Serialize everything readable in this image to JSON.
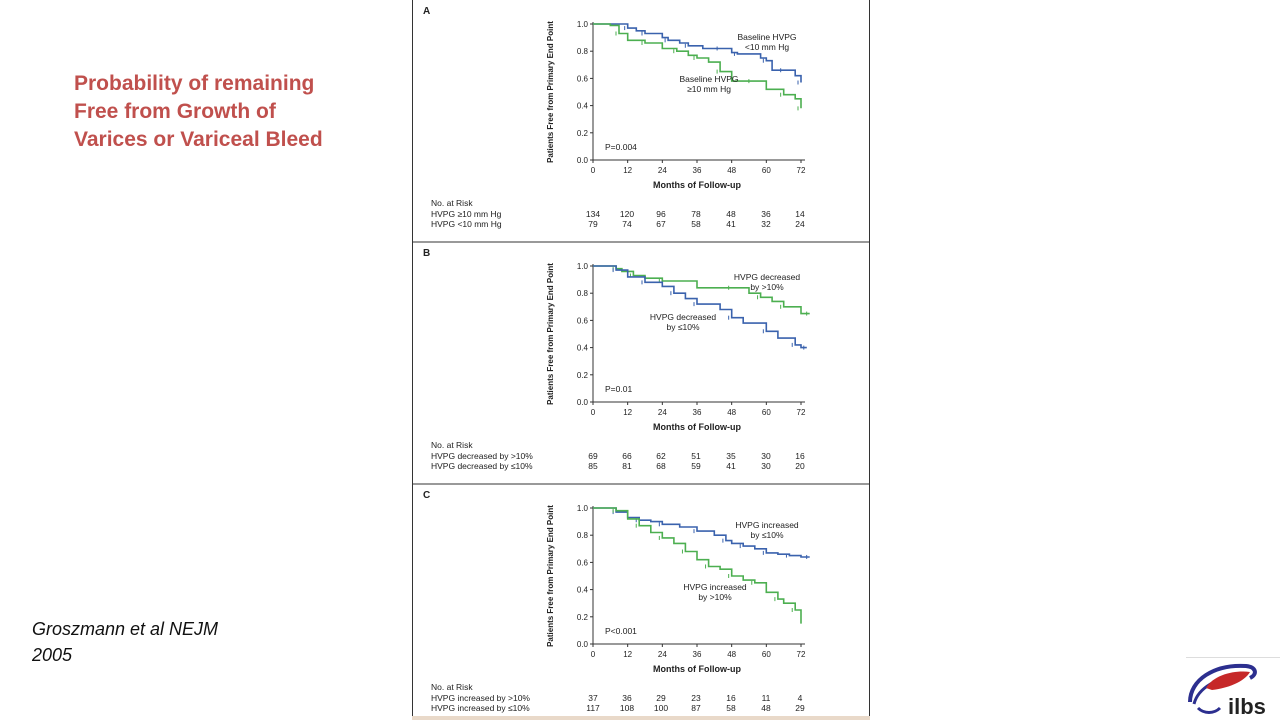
{
  "slide": {
    "title_lines": [
      "Probability of remaining",
      "Free from Growth of",
      "Varices or Variceal Bleed"
    ],
    "citation_lines": [
      "Groszmann et al NEJM",
      "2005"
    ],
    "logo_text": "ilbs"
  },
  "panels": [
    {
      "letter": "A",
      "ylabel": "Patients Free from Primary End Point",
      "xlabel": "Months of Follow-up",
      "pvalue": "P=0.004",
      "risk_title": "No. at Risk",
      "risk_rows": [
        {
          "label": "HVPG ≥10 mm Hg",
          "values": [
            "134",
            "120",
            "96",
            "78",
            "48",
            "36",
            "14"
          ]
        },
        {
          "label": "HVPG <10 mm Hg",
          "values": [
            "79",
            "74",
            "67",
            "58",
            "41",
            "32",
            "24"
          ]
        }
      ],
      "annotations": [
        {
          "lines": [
            "Baseline HVPG",
            "<10 mm Hg"
          ]
        },
        {
          "lines": [
            "Baseline HVPG",
            "≥10 mm Hg"
          ]
        }
      ]
    },
    {
      "letter": "B",
      "ylabel": "Patients Free from Primary End Point",
      "xlabel": "Months of Follow-up",
      "pvalue": "P=0.01",
      "risk_title": "No. at Risk",
      "risk_rows": [
        {
          "label": "HVPG decreased by >10%",
          "values": [
            "69",
            "66",
            "62",
            "51",
            "35",
            "30",
            "16"
          ]
        },
        {
          "label": "HVPG decreased by ≤10%",
          "values": [
            "85",
            "81",
            "68",
            "59",
            "41",
            "30",
            "20"
          ]
        }
      ],
      "annotations": [
        {
          "lines": [
            "HVPG decreased",
            "by >10%"
          ]
        },
        {
          "lines": [
            "HVPG decreased",
            "by ≤10%"
          ]
        }
      ]
    },
    {
      "letter": "C",
      "ylabel": "Patients Free from Primary End Point",
      "xlabel": "Months of Follow-up",
      "pvalue": "P<0.001",
      "risk_title": "No. at Risk",
      "risk_rows": [
        {
          "label": "HVPG increased by >10%",
          "values": [
            "37",
            "36",
            "29",
            "23",
            "16",
            "11",
            "4"
          ]
        },
        {
          "label": "HVPG increased by ≤10%",
          "values": [
            "117",
            "108",
            "100",
            "87",
            "58",
            "48",
            "29"
          ]
        }
      ],
      "annotations": [
        {
          "lines": [
            "HVPG increased",
            "by ≤10%"
          ]
        },
        {
          "lines": [
            "HVPG increased",
            "by >10%"
          ]
        }
      ]
    }
  ],
  "chart_data": [
    {
      "type": "line",
      "step": true,
      "xlabel": "Months of Follow-up",
      "ylabel": "Patients Free from Primary End Point",
      "xlim": [
        0,
        72
      ],
      "ylim": [
        0.0,
        1.0
      ],
      "xticks": [
        0,
        12,
        24,
        36,
        48,
        60,
        72
      ],
      "yticks": [
        "0.0",
        "0.2",
        "0.4",
        "0.6",
        "0.8",
        "1.0"
      ],
      "series": [
        {
          "color": "#3a62ad",
          "x": [
            0,
            8,
            12,
            15,
            18,
            24,
            26,
            30,
            33,
            38,
            44,
            48,
            50,
            58,
            60,
            62,
            66,
            70,
            72
          ],
          "y": [
            1.0,
            1.0,
            0.97,
            0.95,
            0.93,
            0.9,
            0.88,
            0.86,
            0.84,
            0.82,
            0.82,
            0.79,
            0.78,
            0.75,
            0.73,
            0.66,
            0.66,
            0.62,
            0.57
          ]
        },
        {
          "color": "#4caf50",
          "x": [
            0,
            6,
            9,
            12,
            18,
            24,
            29,
            33,
            36,
            40,
            44,
            48,
            55,
            60,
            66,
            70,
            72
          ],
          "y": [
            1.0,
            0.99,
            0.93,
            0.88,
            0.86,
            0.82,
            0.8,
            0.77,
            0.75,
            0.72,
            0.65,
            0.58,
            0.58,
            0.52,
            0.48,
            0.45,
            0.38
          ]
        }
      ]
    },
    {
      "type": "line",
      "step": true,
      "xlabel": "Months of Follow-up",
      "ylabel": "Patients Free from Primary End Point",
      "xlim": [
        0,
        72
      ],
      "ylim": [
        0.0,
        1.0
      ],
      "xticks": [
        0,
        12,
        24,
        36,
        48,
        60,
        72
      ],
      "yticks": [
        "0.0",
        "0.2",
        "0.4",
        "0.6",
        "0.8",
        "1.0"
      ],
      "series": [
        {
          "color": "#4caf50",
          "x": [
            0,
            4,
            8,
            10,
            14,
            18,
            24,
            36,
            48,
            54,
            58,
            62,
            66,
            72,
            75
          ],
          "y": [
            1.0,
            1.0,
            0.98,
            0.96,
            0.93,
            0.91,
            0.89,
            0.84,
            0.84,
            0.8,
            0.77,
            0.74,
            0.7,
            0.65,
            0.65
          ]
        },
        {
          "color": "#3a62ad",
          "x": [
            0,
            4,
            8,
            12,
            18,
            24,
            28,
            32,
            36,
            44,
            48,
            52,
            60,
            64,
            70,
            72,
            74
          ],
          "y": [
            1.0,
            1.0,
            0.97,
            0.92,
            0.88,
            0.85,
            0.8,
            0.76,
            0.72,
            0.68,
            0.62,
            0.58,
            0.52,
            0.47,
            0.42,
            0.4,
            0.4
          ]
        }
      ]
    },
    {
      "type": "line",
      "step": true,
      "xlabel": "Months of Follow-up",
      "ylabel": "Patients Free from Primary End Point",
      "xlim": [
        0,
        72
      ],
      "ylim": [
        0.0,
        1.0
      ],
      "xticks": [
        0,
        12,
        24,
        36,
        48,
        60,
        72
      ],
      "yticks": [
        "0.0",
        "0.2",
        "0.4",
        "0.6",
        "0.8",
        "1.0"
      ],
      "series": [
        {
          "color": "#3a62ad",
          "x": [
            0,
            4,
            8,
            12,
            16,
            20,
            24,
            30,
            36,
            42,
            46,
            48,
            52,
            56,
            60,
            64,
            68,
            72,
            75
          ],
          "y": [
            1.0,
            1.0,
            0.97,
            0.93,
            0.91,
            0.9,
            0.88,
            0.86,
            0.83,
            0.8,
            0.76,
            0.74,
            0.72,
            0.7,
            0.67,
            0.66,
            0.65,
            0.64,
            0.64
          ]
        },
        {
          "color": "#4caf50",
          "x": [
            0,
            4,
            8,
            12,
            16,
            20,
            24,
            28,
            32,
            36,
            40,
            44,
            48,
            52,
            56,
            60,
            64,
            66,
            70,
            72
          ],
          "y": [
            1.0,
            1.0,
            0.98,
            0.92,
            0.87,
            0.82,
            0.78,
            0.74,
            0.68,
            0.62,
            0.57,
            0.55,
            0.5,
            0.47,
            0.45,
            0.38,
            0.33,
            0.3,
            0.25,
            0.15
          ]
        }
      ]
    }
  ]
}
